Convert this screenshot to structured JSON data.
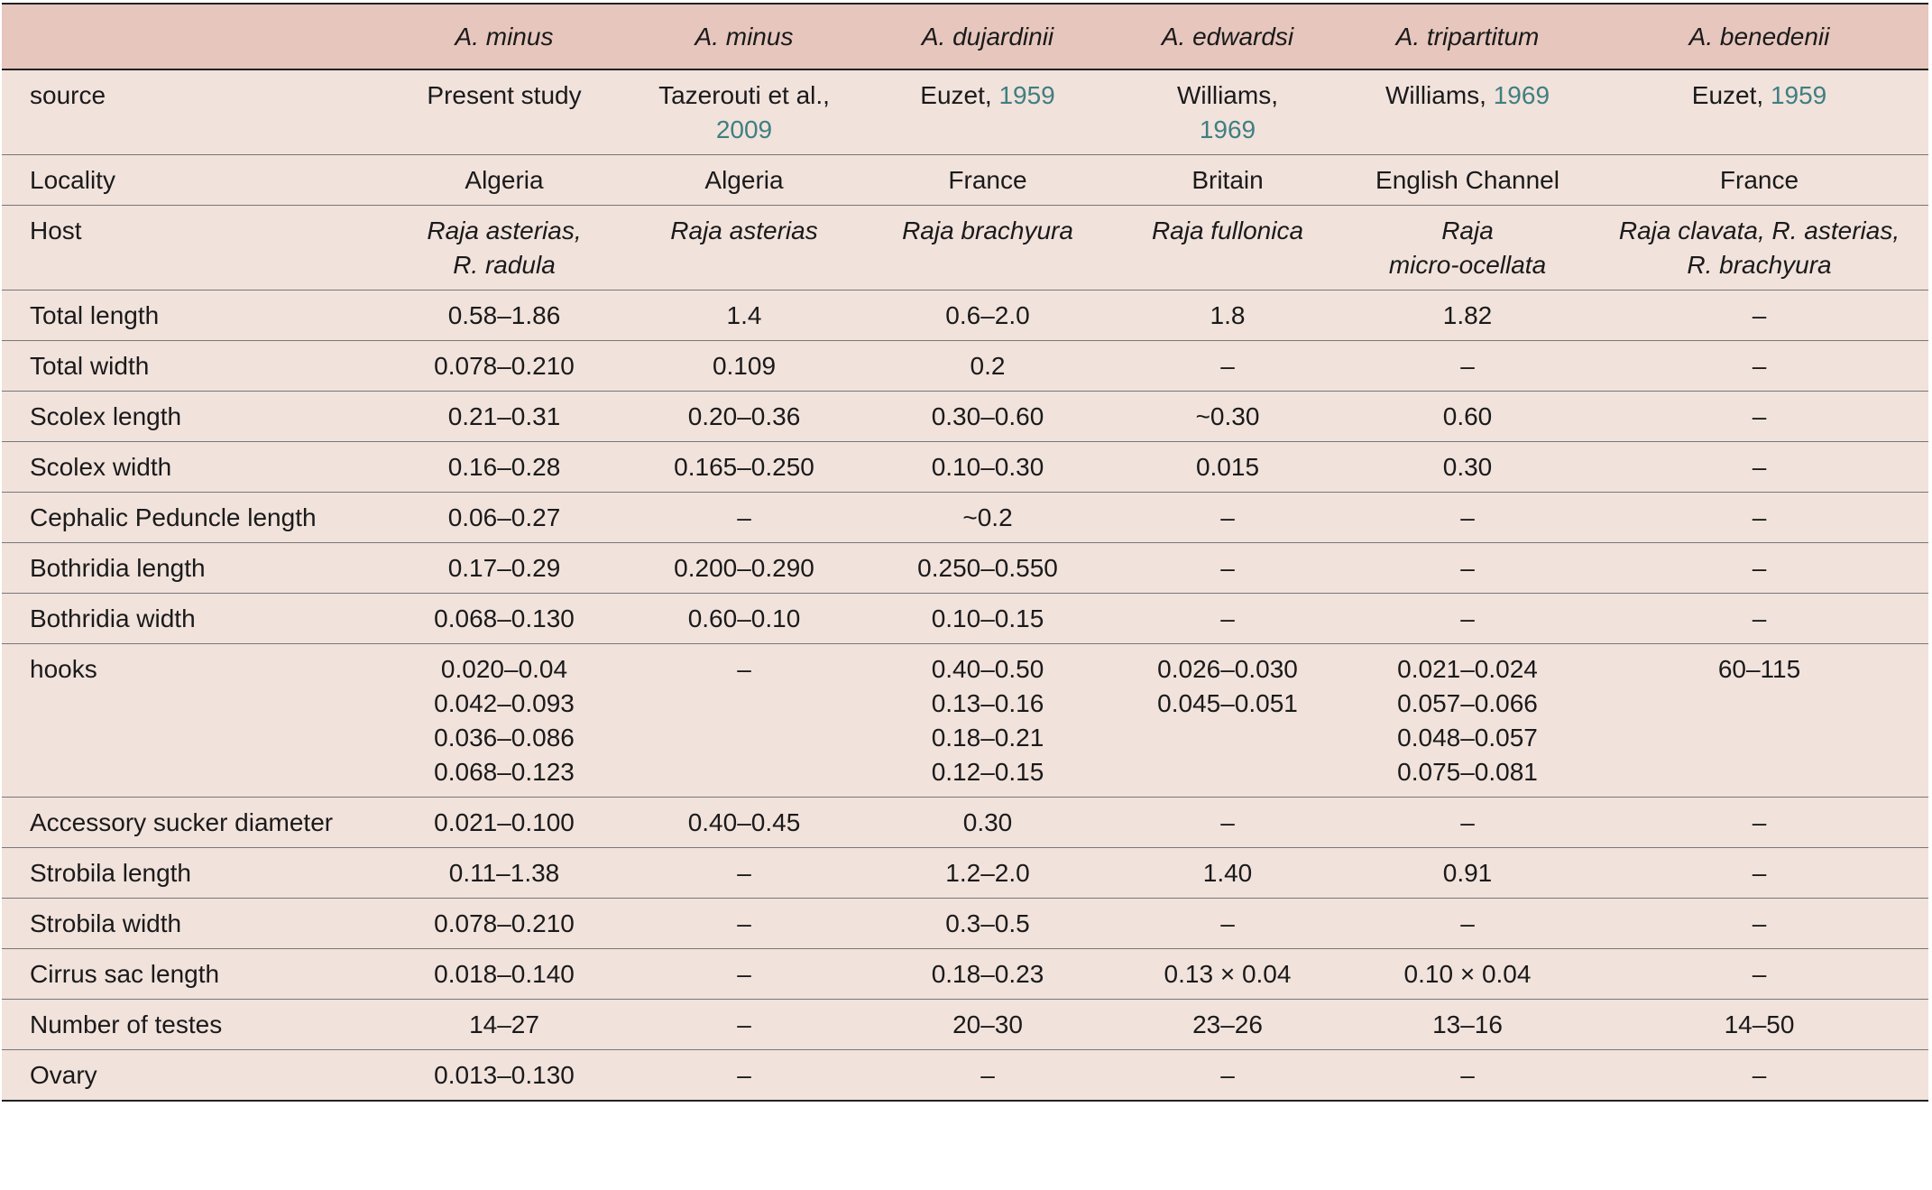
{
  "table": {
    "columns": [
      {
        "species": ""
      },
      {
        "species": "A. minus"
      },
      {
        "species": "A. minus"
      },
      {
        "species": "A. dujardinii"
      },
      {
        "species": "A. edwardsi"
      },
      {
        "species": "A. tripartitum"
      },
      {
        "species": "A. benedenii"
      }
    ],
    "source": {
      "label": "source",
      "cells": [
        {
          "lines": [
            {
              "text": "Present study",
              "year": ""
            }
          ]
        },
        {
          "lines": [
            {
              "text": "Tazerouti et al.,",
              "year": ""
            },
            {
              "text": "",
              "year": "2009"
            }
          ]
        },
        {
          "lines": [
            {
              "text": "Euzet, ",
              "year": "1959"
            }
          ]
        },
        {
          "lines": [
            {
              "text": "Williams,",
              "year": ""
            },
            {
              "text": "",
              "year": "1969"
            }
          ]
        },
        {
          "lines": [
            {
              "text": "Williams, ",
              "year": "1969"
            }
          ]
        },
        {
          "lines": [
            {
              "text": "Euzet, ",
              "year": "1959"
            }
          ]
        }
      ]
    },
    "locality": {
      "label": "Locality",
      "values": [
        "Algeria",
        "Algeria",
        "France",
        "Britain",
        "English Channel",
        "France"
      ]
    },
    "host": {
      "label": "Host",
      "cells": [
        [
          "Raja asterias,",
          "R. radula"
        ],
        [
          "Raja asterias"
        ],
        [
          "Raja brachyura"
        ],
        [
          "Raja fullonica"
        ],
        [
          "Raja",
          "micro-ocellata"
        ],
        [
          "Raja clavata, R. asterias,",
          "R. brachyura"
        ]
      ]
    },
    "rows": [
      {
        "label": "Total length",
        "values": [
          [
            "0.58–1.86"
          ],
          [
            "1.4"
          ],
          [
            "0.6–2.0"
          ],
          [
            "1.8"
          ],
          [
            "1.82"
          ],
          [
            "–"
          ]
        ]
      },
      {
        "label": "Total width",
        "values": [
          [
            "0.078–0.210"
          ],
          [
            "0.109"
          ],
          [
            "0.2"
          ],
          [
            "–"
          ],
          [
            "–"
          ],
          [
            "–"
          ]
        ]
      },
      {
        "label": "Scolex length",
        "values": [
          [
            "0.21–0.31"
          ],
          [
            "0.20–0.36"
          ],
          [
            "0.30–0.60"
          ],
          [
            "~0.30"
          ],
          [
            "0.60"
          ],
          [
            "–"
          ]
        ]
      },
      {
        "label": "Scolex width",
        "values": [
          [
            "0.16–0.28"
          ],
          [
            "0.165–0.250"
          ],
          [
            "0.10–0.30"
          ],
          [
            "0.015"
          ],
          [
            "0.30"
          ],
          [
            "–"
          ]
        ]
      },
      {
        "label": "Cephalic Peduncle length",
        "values": [
          [
            "0.06–0.27"
          ],
          [
            "–"
          ],
          [
            "~0.2"
          ],
          [
            "–"
          ],
          [
            "–"
          ],
          [
            "–"
          ]
        ]
      },
      {
        "label": "Bothridia length",
        "values": [
          [
            "0.17–0.29"
          ],
          [
            "0.200–0.290"
          ],
          [
            "0.250–0.550"
          ],
          [
            "–"
          ],
          [
            "–"
          ],
          [
            "–"
          ]
        ]
      },
      {
        "label": "Bothridia width",
        "values": [
          [
            "0.068–0.130"
          ],
          [
            "0.60–0.10"
          ],
          [
            "0.10–0.15"
          ],
          [
            "–"
          ],
          [
            "–"
          ],
          [
            "–"
          ]
        ]
      },
      {
        "label": "hooks",
        "values": [
          [
            "0.020–0.04",
            "0.042–0.093",
            "0.036–0.086",
            "0.068–0.123"
          ],
          [
            "–"
          ],
          [
            "0.40–0.50",
            "0.13–0.16",
            "0.18–0.21",
            "0.12–0.15"
          ],
          [
            "0.026–0.030",
            "0.045–0.051"
          ],
          [
            "0.021–0.024",
            "0.057–0.066",
            "0.048–0.057",
            "0.075–0.081"
          ],
          [
            "60–115"
          ]
        ]
      },
      {
        "label": "Accessory sucker diameter",
        "values": [
          [
            "0.021–0.100"
          ],
          [
            "0.40–0.45"
          ],
          [
            "0.30"
          ],
          [
            "–"
          ],
          [
            "–"
          ],
          [
            "–"
          ]
        ]
      },
      {
        "label": "Strobila length",
        "values": [
          [
            "0.11–1.38"
          ],
          [
            "–"
          ],
          [
            "1.2–2.0"
          ],
          [
            "1.40"
          ],
          [
            "0.91"
          ],
          [
            "–"
          ]
        ]
      },
      {
        "label": "Strobila width",
        "values": [
          [
            "0.078–0.210"
          ],
          [
            "–"
          ],
          [
            "0.3–0.5"
          ],
          [
            "–"
          ],
          [
            "–"
          ],
          [
            "–"
          ]
        ]
      },
      {
        "label": "Cirrus sac length",
        "values": [
          [
            "0.018–0.140"
          ],
          [
            "–"
          ],
          [
            "0.18–0.23"
          ],
          [
            "0.13 × 0.04"
          ],
          [
            "0.10 × 0.04"
          ],
          [
            "–"
          ]
        ]
      },
      {
        "label": "Number of testes",
        "values": [
          [
            "14–27"
          ],
          [
            "–"
          ],
          [
            "20–30"
          ],
          [
            "23–26"
          ],
          [
            "13–16"
          ],
          [
            "14–50"
          ]
        ]
      },
      {
        "label": "Ovary",
        "values": [
          [
            "0.013–0.130"
          ],
          [
            "–"
          ],
          [
            "–"
          ],
          [
            "–"
          ],
          [
            "–"
          ],
          [
            "–"
          ]
        ]
      }
    ],
    "colors": {
      "header_bg": "#e6c6bd",
      "body_bg": "#f1e2dc",
      "reference_link": "#3f7f80",
      "rule": "#222222"
    }
  }
}
